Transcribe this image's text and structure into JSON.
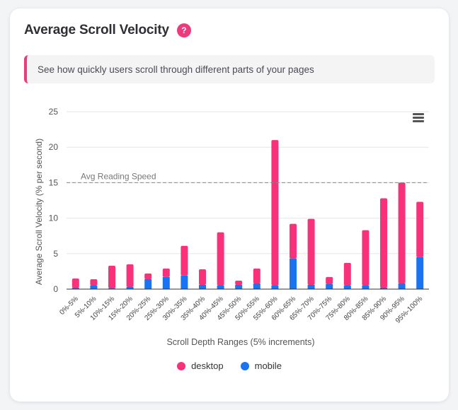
{
  "header": {
    "title": "Average Scroll Velocity",
    "help_icon": "question-icon"
  },
  "description": "See how quickly users scroll through different parts of your pages",
  "menu_icon": "hamburger-menu-icon",
  "colors": {
    "desktop": "#f7327a",
    "mobile": "#1a73f0",
    "accent": "#ec3a7d"
  },
  "chart_data": {
    "type": "bar",
    "stacked": true,
    "title": "Average Scroll Velocity",
    "xlabel": "Scroll Depth Ranges (5% increments)",
    "ylabel": "Average Scroll Velocity (% per second)",
    "ylim": [
      0,
      25
    ],
    "yticks": [
      0,
      5,
      10,
      15,
      20,
      25
    ],
    "grid": true,
    "legend_position": "bottom",
    "categories": [
      "0%-5%",
      "5%-10%",
      "10%-15%",
      "15%-20%",
      "20%-25%",
      "25%-30%",
      "30%-35%",
      "35%-40%",
      "40%-45%",
      "45%-50%",
      "50%-55%",
      "55%-60%",
      "60%-65%",
      "65%-70%",
      "70%-75%",
      "75%-80%",
      "80%-85%",
      "85%-90%",
      "90%-95%",
      "95%-100%"
    ],
    "series": [
      {
        "name": "mobile",
        "values": [
          0.2,
          0.5,
          0.1,
          0.3,
          1.4,
          1.7,
          1.9,
          0.6,
          0.5,
          0.6,
          0.8,
          0.5,
          4.3,
          0.6,
          0.7,
          0.5,
          0.5,
          0.2,
          0.8,
          4.5
        ]
      },
      {
        "name": "desktop",
        "values": [
          1.3,
          0.9,
          3.2,
          3.2,
          0.8,
          1.2,
          4.2,
          2.2,
          7.5,
          0.6,
          2.1,
          20.5,
          4.9,
          9.3,
          1.0,
          3.2,
          7.8,
          12.6,
          14.2,
          7.8
        ]
      }
    ],
    "annotations": [
      {
        "type": "hline",
        "y": 15,
        "label": "Avg Reading Speed"
      }
    ]
  }
}
